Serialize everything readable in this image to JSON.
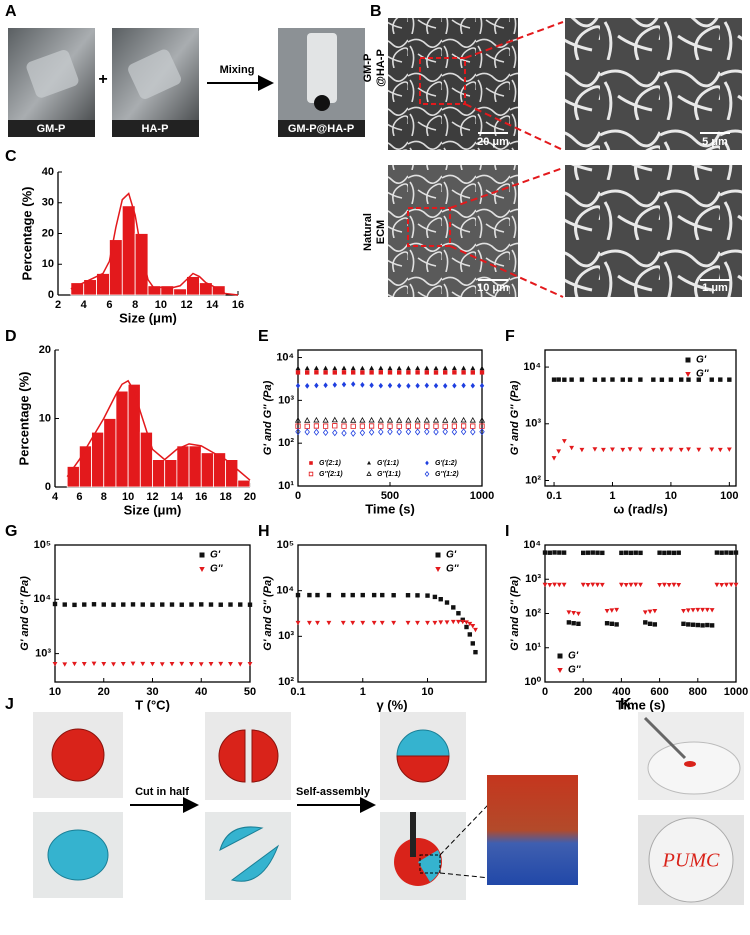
{
  "panel_labels": [
    "A",
    "B",
    "C",
    "D",
    "E",
    "F",
    "G",
    "H",
    "I",
    "J",
    "K"
  ],
  "photos": {
    "a_labels": [
      "GM-P",
      "HA-P",
      "GM-P@HA-P"
    ],
    "a_plus": "+",
    "a_arrow": "Mixing",
    "b_row1": [
      "GM-P",
      "@HA-P"
    ],
    "b_row2": [
      "Natural",
      "ECM"
    ],
    "b_scales": [
      "20 μm",
      "5 μm",
      "10 μm",
      "1 μm"
    ],
    "j_arrows": [
      "Cut in half",
      "Self-assembly"
    ],
    "k_text": "PUMC"
  },
  "chart_data": [
    {
      "type": "histogram",
      "xlabel": "Size (μm)",
      "ylabel": "Percentage (%)",
      "color": "#e3191c",
      "bins": [
        3,
        4,
        5,
        6,
        7,
        8,
        9,
        10,
        11,
        12,
        13,
        14,
        15
      ],
      "values": [
        4,
        5,
        7,
        18,
        29,
        20,
        3,
        3,
        2,
        6,
        4,
        3
      ],
      "fit": {
        "x": [
          3,
          4,
          5,
          5.5,
          6,
          6.5,
          7,
          7.5,
          8,
          8.5,
          9,
          9.5,
          10,
          11,
          11.5,
          12,
          12.5,
          13,
          13.5,
          14,
          15,
          16
        ],
        "values": [
          2,
          4,
          6,
          7,
          11,
          22,
          31,
          33,
          26,
          14,
          5,
          2,
          2.5,
          2.5,
          3,
          5,
          7,
          6,
          4,
          3,
          0.5,
          0
        ]
      },
      "xlim": [
        2,
        16
      ],
      "xticks": [
        2,
        4,
        6,
        8,
        10,
        12,
        14,
        16
      ],
      "ylim": [
        0,
        40
      ],
      "yticks": [
        0,
        10,
        20,
        30,
        40
      ]
    },
    {
      "type": "histogram",
      "xlabel": "Size (μm)",
      "ylabel": "Percentage (%)",
      "color": "#e3191c",
      "bins": [
        5,
        6,
        7,
        8,
        9,
        10,
        11,
        12,
        13,
        14,
        15,
        16,
        17,
        18,
        19,
        20
      ],
      "values": [
        3,
        6,
        8,
        10,
        14,
        15,
        8,
        4,
        4,
        6,
        6,
        5,
        5,
        4,
        1
      ],
      "fit": {
        "x": [
          5,
          6,
          7,
          8,
          9,
          9.5,
          10,
          10.5,
          11,
          12,
          13,
          14,
          15,
          16,
          17,
          18,
          19,
          20
        ],
        "values": [
          1.5,
          4,
          7,
          10,
          13.5,
          15,
          15.5,
          14,
          11,
          5.5,
          4,
          5.5,
          6.3,
          6,
          5,
          4,
          2.5,
          1
        ]
      },
      "xlim": [
        4,
        20
      ],
      "xticks": [
        4,
        6,
        8,
        10,
        12,
        14,
        16,
        18,
        20
      ],
      "ylim": [
        0,
        20
      ],
      "yticks": [
        0,
        10,
        20
      ]
    },
    {
      "type": "scatter",
      "xlabel": "Time (s)",
      "ylabel": "G' and G'' (Pa)",
      "ylog": true,
      "legend": "lower center",
      "x": [
        0,
        50,
        100,
        150,
        200,
        250,
        300,
        350,
        400,
        450,
        500,
        550,
        600,
        650,
        700,
        750,
        800,
        850,
        900,
        950,
        1000
      ],
      "xlim": [
        0,
        1000
      ],
      "xticks": [
        0,
        500,
        1000
      ],
      "ylim": [
        10,
        15000
      ],
      "yticks": [
        {
          "value": 10,
          "label": "10¹"
        },
        {
          "value": 100,
          "label": "10²"
        },
        {
          "value": 1000,
          "label": "10³"
        },
        {
          "value": 10000,
          "label": "10⁴"
        }
      ],
      "series": [
        {
          "name": "G'(2:1)",
          "color": "#e3191c",
          "marker": "square",
          "values": [
            4500,
            4480,
            4520,
            4500,
            4490,
            4510,
            4500,
            4480,
            4500,
            4520,
            4500,
            4490,
            4500,
            4510,
            4500,
            4480,
            4500,
            4510,
            4500,
            4490,
            4500
          ]
        },
        {
          "name": "G''(2:1)",
          "color": "#e3191c",
          "marker": "square-open",
          "values": [
            250,
            248,
            252,
            250,
            255,
            250,
            248,
            250,
            252,
            250,
            250,
            248,
            250,
            252,
            250,
            250,
            248,
            250,
            252,
            250,
            250
          ]
        },
        {
          "name": "G'(1:1)",
          "color": "#111111",
          "marker": "triangle",
          "values": [
            5600,
            5580,
            5620,
            5600,
            5590,
            5610,
            5600,
            5580,
            5600,
            5620,
            5600,
            5590,
            5600,
            5610,
            5600,
            5580,
            5600,
            5610,
            5600,
            5590,
            5600
          ]
        },
        {
          "name": "G''(1:1)",
          "color": "#111111",
          "marker": "triangle-open",
          "values": [
            340,
            338,
            342,
            340,
            345,
            340,
            338,
            340,
            342,
            340,
            340,
            338,
            340,
            342,
            340,
            340,
            338,
            340,
            342,
            340,
            340
          ]
        },
        {
          "name": "G'(1:2)",
          "color": "#1f3fe0",
          "marker": "diamond",
          "values": [
            2200,
            2180,
            2220,
            2250,
            2300,
            2350,
            2400,
            2300,
            2250,
            2200,
            2220,
            2200,
            2180,
            2200,
            2220,
            2200,
            2180,
            2200,
            2220,
            2200,
            2200
          ]
        },
        {
          "name": "G''(1:2)",
          "color": "#1f3fe0",
          "marker": "diamond-open",
          "values": [
            185,
            183,
            180,
            178,
            175,
            172,
            170,
            175,
            180,
            183,
            185,
            183,
            185,
            183,
            185,
            183,
            185,
            183,
            185,
            183,
            185
          ]
        }
      ]
    },
    {
      "type": "scatter",
      "xlabel": "ω (rad/s)",
      "ylabel": "G' and G'' (Pa)",
      "xlog": true,
      "ylog": true,
      "legend": "upper right",
      "x": [
        0.1,
        0.12,
        0.15,
        0.2,
        0.3,
        0.5,
        0.7,
        1,
        1.5,
        2,
        3,
        5,
        7,
        10,
        15,
        20,
        30,
        50,
        70,
        100
      ],
      "xlim": [
        0.07,
        130
      ],
      "xticks": [
        0.1,
        1,
        10,
        100
      ],
      "ylim": [
        80,
        20000
      ],
      "yticks": [
        {
          "value": 100,
          "label": "10²"
        },
        {
          "value": 1000,
          "label": "10³"
        },
        {
          "value": 10000,
          "label": "10⁴"
        }
      ],
      "series": [
        {
          "name": "G'",
          "color": "#111111",
          "marker": "square",
          "values": [
            6000,
            6020,
            5980,
            6000,
            6010,
            5990,
            6000,
            6020,
            6000,
            5990,
            6010,
            6000,
            5980,
            6000,
            6010,
            6000,
            5990,
            6000,
            6010,
            6000
          ]
        },
        {
          "name": "G''",
          "color": "#e3191c",
          "marker": "triangle-down",
          "values": [
            250,
            330,
            500,
            380,
            350,
            360,
            350,
            355,
            350,
            360,
            355,
            350,
            352,
            355,
            350,
            358,
            352,
            356,
            350,
            355
          ]
        }
      ]
    },
    {
      "type": "scatter",
      "xlabel": "T (°C)",
      "ylabel": "G' and G'' (Pa)",
      "ylog": true,
      "legend": "upper right",
      "x": [
        10,
        12,
        14,
        16,
        18,
        20,
        22,
        24,
        26,
        28,
        30,
        32,
        34,
        36,
        38,
        40,
        42,
        44,
        46,
        48,
        50
      ],
      "xlim": [
        10,
        50
      ],
      "xticks": [
        10,
        20,
        30,
        40,
        50
      ],
      "ylim": [
        300,
        100000
      ],
      "yticks": [
        {
          "value": 1000,
          "label": "10³"
        },
        {
          "value": 10000,
          "label": "10⁴"
        },
        {
          "value": 100000,
          "label": "10⁵"
        }
      ],
      "series": [
        {
          "name": "G'",
          "color": "#111111",
          "marker": "square",
          "values": [
            8200,
            8000,
            7900,
            8000,
            8100,
            8000,
            7950,
            8000,
            8050,
            8000,
            7950,
            8000,
            8000,
            7950,
            8000,
            8050,
            8000,
            7950,
            8000,
            8000,
            7950
          ]
        },
        {
          "name": "G''",
          "color": "#e3191c",
          "marker": "triangle-down",
          "values": [
            650,
            640,
            655,
            650,
            660,
            650,
            645,
            650,
            660,
            655,
            650,
            645,
            650,
            655,
            650,
            645,
            650,
            655,
            650,
            645,
            650
          ]
        }
      ]
    },
    {
      "type": "scatter",
      "xlabel": "γ (%)",
      "ylabel": "G' and G'' (Pa)",
      "xlog": true,
      "ylog": true,
      "legend": "upper right",
      "x": [
        0.1,
        0.15,
        0.2,
        0.3,
        0.5,
        0.7,
        1,
        1.5,
        2,
        3,
        5,
        7,
        10,
        13,
        16,
        20,
        25,
        30,
        35,
        40,
        45,
        50,
        55
      ],
      "xlim": [
        0.1,
        80
      ],
      "xticks": [
        0.1,
        1,
        10
      ],
      "ylim": [
        100,
        100000
      ],
      "yticks": [
        {
          "value": 100,
          "label": "10²"
        },
        {
          "value": 1000,
          "label": "10³"
        },
        {
          "value": 10000,
          "label": "10⁴"
        },
        {
          "value": 100000,
          "label": "10⁵"
        }
      ],
      "series": [
        {
          "name": "G'",
          "color": "#111111",
          "marker": "square",
          "values": [
            8000,
            8000,
            8000,
            8000,
            8000,
            8000,
            8000,
            8000,
            8000,
            7950,
            7950,
            7900,
            7800,
            7300,
            6500,
            5500,
            4300,
            3200,
            2300,
            1600,
            1100,
            700,
            450
          ]
        },
        {
          "name": "G''",
          "color": "#e3191c",
          "marker": "triangle-down",
          "values": [
            2000,
            2000,
            2000,
            2000,
            2000,
            2000,
            2000,
            2000,
            2000,
            2000,
            2000,
            2000,
            2000,
            2000,
            2050,
            2050,
            2100,
            2100,
            2100,
            2050,
            1900,
            1700,
            1400
          ]
        }
      ]
    },
    {
      "type": "scatter",
      "xlabel": "Time (s)",
      "ylabel": "G' and G'' (Pa)",
      "ylog": true,
      "legend": "lower left",
      "x": [
        0,
        25,
        50,
        75,
        100,
        125,
        150,
        175,
        200,
        225,
        250,
        275,
        300,
        325,
        350,
        375,
        400,
        425,
        450,
        475,
        500,
        525,
        550,
        575,
        600,
        625,
        650,
        675,
        700,
        725,
        750,
        775,
        800,
        825,
        850,
        875,
        900,
        925,
        950,
        975,
        1000
      ],
      "xlim": [
        0,
        1000
      ],
      "xticks": [
        0,
        200,
        400,
        600,
        800,
        1000
      ],
      "ylim": [
        1,
        10000
      ],
      "yticks": [
        {
          "value": 1,
          "label": "10⁰"
        },
        {
          "value": 10,
          "label": "10¹"
        },
        {
          "value": 100,
          "label": "10²"
        },
        {
          "value": 1000,
          "label": "10³"
        },
        {
          "value": 10000,
          "label": "10⁴"
        }
      ],
      "series": [
        {
          "name": "G'",
          "color": "#111111",
          "marker": "square",
          "values": [
            6000,
            5950,
            6050,
            6000,
            5980,
            55,
            52,
            50,
            5900,
            5950,
            6000,
            5950,
            5900,
            52,
            50,
            48,
            5900,
            5950,
            5900,
            5950,
            5900,
            55,
            50,
            48,
            5950,
            5900,
            5950,
            5900,
            5950,
            50,
            48,
            47,
            46,
            45,
            46,
            45,
            6000,
            5950,
            6000,
            5950,
            6000
          ]
        },
        {
          "name": "G''",
          "color": "#e3191c",
          "marker": "triangle-down",
          "values": [
            700,
            690,
            710,
            700,
            700,
            110,
            105,
            100,
            700,
            690,
            710,
            700,
            695,
            120,
            125,
            130,
            700,
            690,
            700,
            710,
            700,
            110,
            115,
            120,
            690,
            700,
            690,
            700,
            690,
            120,
            125,
            128,
            130,
            130,
            130,
            128,
            700,
            690,
            700,
            710,
            700
          ]
        }
      ]
    }
  ]
}
